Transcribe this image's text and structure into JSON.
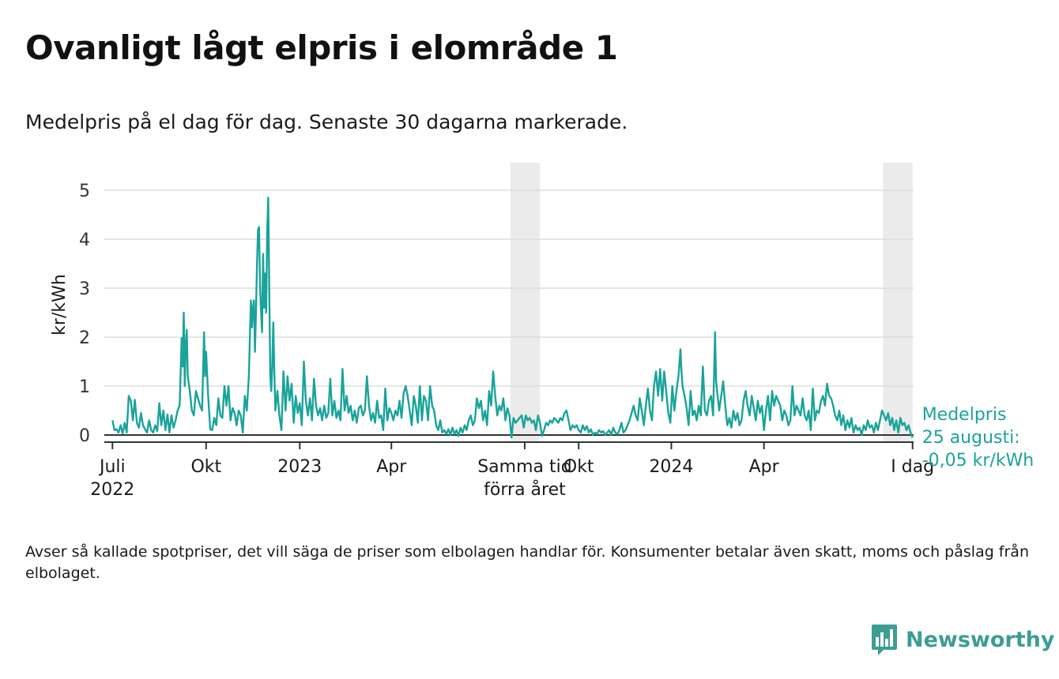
{
  "header": {
    "title": "Ovanligt lågt elpris i elområde 1",
    "subtitle": "Medelpris på el dag för dag.  Senaste 30 dagarna markerade."
  },
  "footer": {
    "note": "Avser så kallade spotpriser, det vill säga de priser som elbolagen handlar för. Konsumenter betalar även skatt, moms och påslag från elbolaget.",
    "brand": "Newsworthy"
  },
  "colors": {
    "line": "#1aa39a",
    "highlight": "#ebebeb",
    "grid": "#dddddd",
    "axis": "#333333",
    "brand": "#3d9d93"
  },
  "chart_data": {
    "type": "line",
    "title": "Ovanligt lågt elpris i elområde 1",
    "ylabel": "kr/kWh",
    "xlabel": "",
    "ylim": [
      0,
      5
    ],
    "xlim_days": [
      -8,
      787
    ],
    "yticks": [
      0,
      1,
      2,
      3,
      4,
      5
    ],
    "grid": true,
    "x_ticks": [
      {
        "day": 0,
        "lines": [
          "Juli",
          "2022"
        ]
      },
      {
        "day": 92,
        "lines": [
          "Okt"
        ]
      },
      {
        "day": 184,
        "lines": [
          "2023"
        ]
      },
      {
        "day": 274,
        "lines": [
          "Apr"
        ]
      },
      {
        "day": 405,
        "lines": [
          "Samma tid",
          "förra året"
        ]
      },
      {
        "day": 458,
        "lines": [
          "Okt"
        ]
      },
      {
        "day": 549,
        "lines": [
          "2024"
        ]
      },
      {
        "day": 640,
        "lines": [
          "Apr"
        ]
      },
      {
        "day": 786,
        "lines": [
          "I dag"
        ]
      }
    ],
    "highlight_ranges": [
      {
        "start_day": 391,
        "end_day": 420,
        "label": "Samma tid förra året"
      },
      {
        "start_day": 757,
        "end_day": 786,
        "label": "Senaste 30 dagarna"
      }
    ],
    "annotation": {
      "lines": [
        "Medelpris",
        "25 augusti:",
        "-0,05 kr/kWh"
      ],
      "day": 786,
      "value": -0.05
    },
    "keypoints": [
      [
        0,
        0.3
      ],
      [
        2,
        0.1
      ],
      [
        4,
        0.12
      ],
      [
        6,
        0.05
      ],
      [
        8,
        0.2
      ],
      [
        10,
        0.03
      ],
      [
        12,
        0.25
      ],
      [
        14,
        0.05
      ],
      [
        16,
        0.8
      ],
      [
        18,
        0.7
      ],
      [
        20,
        0.3
      ],
      [
        22,
        0.72
      ],
      [
        24,
        0.25
      ],
      [
        26,
        0.15
      ],
      [
        28,
        0.45
      ],
      [
        30,
        0.2
      ],
      [
        32,
        0.12
      ],
      [
        34,
        0.05
      ],
      [
        36,
        0.3
      ],
      [
        38,
        0.1
      ],
      [
        40,
        0.05
      ],
      [
        42,
        0.2
      ],
      [
        44,
        0.08
      ],
      [
        46,
        0.65
      ],
      [
        48,
        0.2
      ],
      [
        50,
        0.5
      ],
      [
        52,
        0.1
      ],
      [
        54,
        0.42
      ],
      [
        56,
        0.05
      ],
      [
        58,
        0.4
      ],
      [
        60,
        0.15
      ],
      [
        62,
        0.3
      ],
      [
        64,
        0.5
      ],
      [
        66,
        0.6
      ],
      [
        68,
        1.98
      ],
      [
        69,
        1.4
      ],
      [
        70,
        2.5
      ],
      [
        71,
        1.0
      ],
      [
        72,
        1.8
      ],
      [
        73,
        2.15
      ],
      [
        74,
        1.2
      ],
      [
        76,
        0.9
      ],
      [
        78,
        0.5
      ],
      [
        80,
        0.4
      ],
      [
        82,
        0.9
      ],
      [
        84,
        0.75
      ],
      [
        86,
        0.6
      ],
      [
        88,
        0.5
      ],
      [
        90,
        2.1
      ],
      [
        91,
        1.2
      ],
      [
        92,
        1.7
      ],
      [
        94,
        0.8
      ],
      [
        96,
        0.12
      ],
      [
        98,
        0.1
      ],
      [
        100,
        0.35
      ],
      [
        102,
        0.2
      ],
      [
        104,
        0.75
      ],
      [
        106,
        0.4
      ],
      [
        108,
        0.35
      ],
      [
        110,
        1.0
      ],
      [
        112,
        0.6
      ],
      [
        114,
        1.0
      ],
      [
        116,
        0.3
      ],
      [
        118,
        0.55
      ],
      [
        120,
        0.45
      ],
      [
        122,
        0.2
      ],
      [
        124,
        0.5
      ],
      [
        126,
        0.4
      ],
      [
        128,
        0.05
      ],
      [
        130,
        0.8
      ],
      [
        132,
        0.5
      ],
      [
        134,
        1.2
      ],
      [
        135,
        2.0
      ],
      [
        136,
        2.75
      ],
      [
        137,
        2.2
      ],
      [
        138,
        2.6
      ],
      [
        139,
        2.75
      ],
      [
        140,
        1.7
      ],
      [
        141,
        2.5
      ],
      [
        142,
        3.5
      ],
      [
        143,
        4.2
      ],
      [
        144,
        4.25
      ],
      [
        145,
        3.0
      ],
      [
        146,
        2.5
      ],
      [
        147,
        2.1
      ],
      [
        148,
        3.7
      ],
      [
        149,
        2.6
      ],
      [
        150,
        3.3
      ],
      [
        151,
        2.5
      ],
      [
        152,
        4.15
      ],
      [
        153,
        4.85
      ],
      [
        154,
        3.0
      ],
      [
        155,
        1.2
      ],
      [
        156,
        0.9
      ],
      [
        157,
        1.4
      ],
      [
        158,
        2.3
      ],
      [
        159,
        1.3
      ],
      [
        160,
        0.5
      ],
      [
        162,
        0.9
      ],
      [
        164,
        0.4
      ],
      [
        166,
        0.1
      ],
      [
        168,
        1.3
      ],
      [
        170,
        0.5
      ],
      [
        172,
        1.2
      ],
      [
        174,
        0.7
      ],
      [
        176,
        1.05
      ],
      [
        178,
        0.25
      ],
      [
        180,
        0.8
      ],
      [
        182,
        0.45
      ],
      [
        184,
        0.65
      ],
      [
        186,
        0.2
      ],
      [
        188,
        1.5
      ],
      [
        190,
        0.7
      ],
      [
        192,
        0.4
      ],
      [
        194,
        0.75
      ],
      [
        196,
        0.3
      ],
      [
        198,
        1.15
      ],
      [
        200,
        0.6
      ],
      [
        202,
        0.4
      ],
      [
        204,
        0.55
      ],
      [
        206,
        0.3
      ],
      [
        208,
        0.6
      ],
      [
        210,
        0.35
      ],
      [
        212,
        0.45
      ],
      [
        214,
        1.15
      ],
      [
        216,
        0.4
      ],
      [
        218,
        0.7
      ],
      [
        220,
        0.35
      ],
      [
        222,
        0.5
      ],
      [
        224,
        0.3
      ],
      [
        226,
        1.35
      ],
      [
        228,
        0.5
      ],
      [
        230,
        0.8
      ],
      [
        232,
        0.45
      ],
      [
        234,
        0.6
      ],
      [
        236,
        0.3
      ],
      [
        238,
        0.5
      ],
      [
        240,
        0.25
      ],
      [
        242,
        0.55
      ],
      [
        244,
        0.6
      ],
      [
        246,
        0.4
      ],
      [
        248,
        0.5
      ],
      [
        250,
        1.2
      ],
      [
        252,
        0.6
      ],
      [
        254,
        0.3
      ],
      [
        256,
        0.45
      ],
      [
        258,
        0.25
      ],
      [
        260,
        0.7
      ],
      [
        262,
        0.35
      ],
      [
        264,
        0.4
      ],
      [
        266,
        0.1
      ],
      [
        268,
        0.95
      ],
      [
        270,
        0.3
      ],
      [
        272,
        0.55
      ],
      [
        274,
        0.45
      ],
      [
        276,
        0.3
      ],
      [
        278,
        0.5
      ],
      [
        280,
        0.4
      ],
      [
        282,
        0.7
      ],
      [
        284,
        0.35
      ],
      [
        286,
        0.85
      ],
      [
        288,
        1.0
      ],
      [
        290,
        0.8
      ],
      [
        292,
        0.5
      ],
      [
        294,
        0.2
      ],
      [
        296,
        0.8
      ],
      [
        298,
        0.6
      ],
      [
        300,
        0.25
      ],
      [
        302,
        1.0
      ],
      [
        304,
        0.3
      ],
      [
        306,
        0.8
      ],
      [
        308,
        0.7
      ],
      [
        310,
        0.3
      ],
      [
        312,
        1.0
      ],
      [
        314,
        0.6
      ],
      [
        316,
        0.5
      ],
      [
        318,
        0.2
      ],
      [
        320,
        0.1
      ],
      [
        322,
        0.3
      ],
      [
        324,
        0.05
      ],
      [
        326,
        0.1
      ],
      [
        328,
        0.02
      ],
      [
        330,
        0.12
      ],
      [
        332,
        0.0
      ],
      [
        334,
        0.15
      ],
      [
        336,
        0.02
      ],
      [
        338,
        0.1
      ],
      [
        340,
        -0.02
      ],
      [
        342,
        0.15
      ],
      [
        344,
        0.05
      ],
      [
        346,
        0.2
      ],
      [
        348,
        0.1
      ],
      [
        350,
        0.3
      ],
      [
        352,
        0.4
      ],
      [
        354,
        0.2
      ],
      [
        356,
        0.3
      ],
      [
        358,
        0.75
      ],
      [
        360,
        0.55
      ],
      [
        362,
        0.7
      ],
      [
        364,
        0.3
      ],
      [
        366,
        0.5
      ],
      [
        368,
        0.2
      ],
      [
        370,
        0.9
      ],
      [
        372,
        0.6
      ],
      [
        374,
        1.3
      ],
      [
        376,
        0.8
      ],
      [
        378,
        0.4
      ],
      [
        380,
        0.6
      ],
      [
        382,
        0.5
      ],
      [
        384,
        0.75
      ],
      [
        386,
        0.3
      ],
      [
        388,
        0.55
      ],
      [
        390,
        0.4
      ],
      [
        392,
        -0.05
      ],
      [
        394,
        0.35
      ],
      [
        396,
        0.25
      ],
      [
        398,
        0.3
      ],
      [
        400,
        0.35
      ],
      [
        402,
        0.4
      ],
      [
        404,
        0.15
      ],
      [
        406,
        0.4
      ],
      [
        408,
        0.3
      ],
      [
        410,
        0.35
      ],
      [
        412,
        0.25
      ],
      [
        414,
        0.3
      ],
      [
        416,
        0.1
      ],
      [
        418,
        0.4
      ],
      [
        420,
        0.25
      ],
      [
        422,
        -0.02
      ],
      [
        424,
        0.1
      ],
      [
        426,
        0.25
      ],
      [
        428,
        0.2
      ],
      [
        430,
        0.3
      ],
      [
        432,
        0.25
      ],
      [
        434,
        0.35
      ],
      [
        436,
        0.3
      ],
      [
        438,
        0.25
      ],
      [
        440,
        0.35
      ],
      [
        442,
        0.3
      ],
      [
        444,
        0.45
      ],
      [
        446,
        0.5
      ],
      [
        448,
        0.3
      ],
      [
        450,
        0.1
      ],
      [
        452,
        0.2
      ],
      [
        454,
        0.15
      ],
      [
        456,
        0.2
      ],
      [
        458,
        0.1
      ],
      [
        460,
        0.05
      ],
      [
        462,
        0.2
      ],
      [
        464,
        0.1
      ],
      [
        466,
        0.18
      ],
      [
        468,
        0.05
      ],
      [
        470,
        0.12
      ],
      [
        472,
        0.0
      ],
      [
        474,
        0.05
      ],
      [
        476,
        0.02
      ],
      [
        478,
        0.1
      ],
      [
        480,
        0.05
      ],
      [
        482,
        0.08
      ],
      [
        484,
        0.0
      ],
      [
        486,
        0.05
      ],
      [
        488,
        0.1
      ],
      [
        490,
        0.0
      ],
      [
        492,
        0.15
      ],
      [
        494,
        0.05
      ],
      [
        496,
        0.02
      ],
      [
        498,
        0.1
      ],
      [
        500,
        0.25
      ],
      [
        502,
        0.05
      ],
      [
        504,
        0.1
      ],
      [
        506,
        0.2
      ],
      [
        508,
        0.3
      ],
      [
        510,
        0.45
      ],
      [
        512,
        0.6
      ],
      [
        514,
        0.4
      ],
      [
        516,
        0.3
      ],
      [
        518,
        0.75
      ],
      [
        520,
        0.5
      ],
      [
        522,
        0.2
      ],
      [
        524,
        0.6
      ],
      [
        526,
        0.95
      ],
      [
        528,
        0.5
      ],
      [
        530,
        0.3
      ],
      [
        532,
        1.0
      ],
      [
        534,
        1.3
      ],
      [
        536,
        0.8
      ],
      [
        538,
        1.35
      ],
      [
        540,
        0.7
      ],
      [
        542,
        1.3
      ],
      [
        544,
        0.9
      ],
      [
        546,
        0.45
      ],
      [
        548,
        0.25
      ],
      [
        550,
        1.0
      ],
      [
        552,
        0.5
      ],
      [
        554,
        0.9
      ],
      [
        556,
        1.2
      ],
      [
        558,
        1.75
      ],
      [
        559,
        1.3
      ],
      [
        560,
        1.0
      ],
      [
        562,
        0.8
      ],
      [
        564,
        0.55
      ],
      [
        566,
        0.2
      ],
      [
        568,
        0.9
      ],
      [
        570,
        0.4
      ],
      [
        572,
        0.5
      ],
      [
        574,
        0.3
      ],
      [
        576,
        0.6
      ],
      [
        578,
        0.4
      ],
      [
        580,
        1.4
      ],
      [
        582,
        0.5
      ],
      [
        584,
        0.4
      ],
      [
        586,
        0.7
      ],
      [
        588,
        0.8
      ],
      [
        590,
        0.4
      ],
      [
        592,
        2.1
      ],
      [
        593,
        1.1
      ],
      [
        594,
        0.9
      ],
      [
        596,
        0.5
      ],
      [
        598,
        0.8
      ],
      [
        600,
        1.1
      ],
      [
        602,
        0.6
      ],
      [
        604,
        0.2
      ],
      [
        606,
        0.35
      ],
      [
        608,
        0.15
      ],
      [
        610,
        0.5
      ],
      [
        612,
        0.3
      ],
      [
        614,
        0.45
      ],
      [
        616,
        0.2
      ],
      [
        618,
        0.3
      ],
      [
        620,
        0.7
      ],
      [
        622,
        0.9
      ],
      [
        624,
        0.6
      ],
      [
        626,
        0.4
      ],
      [
        628,
        0.8
      ],
      [
        630,
        0.55
      ],
      [
        632,
        0.3
      ],
      [
        634,
        0.7
      ],
      [
        636,
        0.45
      ],
      [
        638,
        0.6
      ],
      [
        640,
        0.1
      ],
      [
        642,
        0.5
      ],
      [
        644,
        0.8
      ],
      [
        646,
        0.3
      ],
      [
        648,
        0.9
      ],
      [
        650,
        0.6
      ],
      [
        652,
        0.8
      ],
      [
        654,
        0.7
      ],
      [
        656,
        0.6
      ],
      [
        658,
        0.3
      ],
      [
        660,
        0.5
      ],
      [
        662,
        0.4
      ],
      [
        664,
        0.2
      ],
      [
        666,
        0.3
      ],
      [
        668,
        1.0
      ],
      [
        670,
        0.4
      ],
      [
        672,
        0.6
      ],
      [
        674,
        0.5
      ],
      [
        676,
        0.4
      ],
      [
        678,
        0.75
      ],
      [
        680,
        0.4
      ],
      [
        682,
        0.3
      ],
      [
        684,
        0.5
      ],
      [
        686,
        0.1
      ],
      [
        688,
        0.95
      ],
      [
        690,
        0.3
      ],
      [
        692,
        0.5
      ],
      [
        694,
        0.45
      ],
      [
        696,
        0.7
      ],
      [
        698,
        0.8
      ],
      [
        700,
        0.6
      ],
      [
        702,
        1.05
      ],
      [
        704,
        0.8
      ],
      [
        706,
        0.75
      ],
      [
        708,
        0.6
      ],
      [
        710,
        0.4
      ],
      [
        712,
        0.3
      ],
      [
        714,
        0.5
      ],
      [
        716,
        0.2
      ],
      [
        718,
        0.4
      ],
      [
        720,
        0.1
      ],
      [
        722,
        0.3
      ],
      [
        724,
        0.15
      ],
      [
        726,
        0.35
      ],
      [
        728,
        0.05
      ],
      [
        730,
        0.2
      ],
      [
        732,
        0.1
      ],
      [
        734,
        0.15
      ],
      [
        736,
        0.0
      ],
      [
        738,
        0.2
      ],
      [
        740,
        0.1
      ],
      [
        742,
        0.3
      ],
      [
        744,
        0.15
      ],
      [
        746,
        0.2
      ],
      [
        748,
        0.05
      ],
      [
        750,
        0.25
      ],
      [
        752,
        0.1
      ],
      [
        754,
        0.3
      ],
      [
        756,
        0.5
      ],
      [
        758,
        0.4
      ],
      [
        760,
        0.3
      ],
      [
        762,
        0.45
      ],
      [
        764,
        0.2
      ],
      [
        766,
        0.35
      ],
      [
        768,
        0.1
      ],
      [
        770,
        0.3
      ],
      [
        772,
        0.05
      ],
      [
        774,
        0.35
      ],
      [
        776,
        0.2
      ],
      [
        778,
        0.25
      ],
      [
        780,
        0.1
      ],
      [
        782,
        0.2
      ],
      [
        784,
        0.05
      ],
      [
        786,
        -0.05
      ]
    ]
  }
}
